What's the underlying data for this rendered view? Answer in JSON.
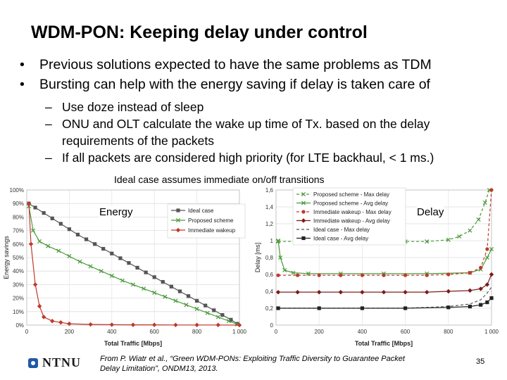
{
  "slide": {
    "title": "WDM-PON: Keeping delay under control",
    "bullets": [
      "Previous solutions expected to have the same problems as TDM",
      "Bursting can help with the energy saving if delay is taken care of"
    ],
    "sub_bullets": [
      "Use doze instead of sleep",
      "ONU and OLT calculate the wake up time of Tx. based on the delay requirements of the packets",
      "If all packets are considered high priority (for LTE backhaul, < 1 ms.)"
    ],
    "bullet_marker": "•",
    "sub_marker": "–",
    "caption": "Ideal case assumes immediate on/off transitions",
    "reference": "From P. Wiatr et al., “Green WDM-PONs: Exploiting Traffic Diversity to Guarantee Packet Delay Limitation”, ONDM13, 2013.",
    "page_number": "35",
    "logo_text": "NTNU"
  },
  "chart_data": [
    {
      "type": "line",
      "tag": "Energy",
      "xlabel": "Total Traffic [Mbps]",
      "ylabel": "Energy savings",
      "xlim": [
        0,
        1000
      ],
      "ylim": [
        0,
        1
      ],
      "x_ticks": [
        "0",
        "200",
        "400",
        "600",
        "800",
        "1 000"
      ],
      "y_ticks": [
        "0%",
        "10%",
        "20%",
        "30%",
        "40%",
        "50%",
        "60%",
        "70%",
        "80%",
        "90%",
        "100%"
      ],
      "legend_position": "top-right",
      "series": [
        {
          "name": "Ideal case",
          "color": "#555555",
          "marker": "square",
          "x": [
            10,
            40,
            80,
            120,
            160,
            200,
            240,
            280,
            320,
            360,
            400,
            440,
            480,
            520,
            560,
            600,
            640,
            680,
            720,
            760,
            800,
            840,
            880,
            920,
            960,
            990
          ],
          "y": [
            0.9,
            0.87,
            0.83,
            0.79,
            0.75,
            0.71,
            0.67,
            0.635,
            0.6,
            0.565,
            0.53,
            0.495,
            0.46,
            0.425,
            0.39,
            0.355,
            0.32,
            0.285,
            0.25,
            0.215,
            0.18,
            0.145,
            0.11,
            0.075,
            0.04,
            0.01
          ]
        },
        {
          "name": "Proposed scheme",
          "color": "#4a9a3a",
          "marker": "cross",
          "x": [
            10,
            30,
            60,
            100,
            150,
            200,
            250,
            300,
            350,
            400,
            450,
            500,
            550,
            600,
            650,
            700,
            750,
            800,
            850,
            900,
            950,
            990
          ],
          "y": [
            0.88,
            0.7,
            0.62,
            0.585,
            0.55,
            0.51,
            0.47,
            0.435,
            0.4,
            0.365,
            0.33,
            0.3,
            0.27,
            0.24,
            0.21,
            0.18,
            0.15,
            0.12,
            0.09,
            0.06,
            0.03,
            0.005
          ]
        },
        {
          "name": "Immediate wakeup",
          "color": "#c0392b",
          "marker": "diamond",
          "x": [
            10,
            20,
            40,
            60,
            80,
            120,
            160,
            200,
            300,
            400,
            500,
            600,
            700,
            800,
            900,
            1000
          ],
          "y": [
            0.9,
            0.6,
            0.3,
            0.14,
            0.06,
            0.03,
            0.02,
            0.01,
            0.005,
            0.003,
            0.002,
            0.002,
            0.001,
            0.001,
            0.001,
            0.0
          ]
        }
      ]
    },
    {
      "type": "line",
      "tag": "Delay",
      "xlabel": "Total Traffic [Mbps]",
      "ylabel": "Delay [ms]",
      "xlim": [
        0,
        1000
      ],
      "ylim": [
        0,
        1.6
      ],
      "x_ticks": [
        "0",
        "200",
        "400",
        "600",
        "800",
        "1 000"
      ],
      "y_ticks": [
        "0",
        "0,2",
        "0,4",
        "0,6",
        "0,8",
        "1",
        "1,2",
        "1,4",
        "1,6"
      ],
      "legend_position": "top",
      "series": [
        {
          "name": "Proposed scheme - Max delay",
          "color": "#4a9a3a",
          "dash": "4,3",
          "marker": "cross",
          "x": [
            10,
            100,
            200,
            300,
            400,
            500,
            600,
            700,
            800,
            850,
            900,
            940,
            970,
            990
          ],
          "y": [
            0.99,
            0.99,
            0.99,
            0.99,
            0.99,
            0.99,
            0.99,
            0.99,
            1.01,
            1.05,
            1.12,
            1.25,
            1.45,
            1.6
          ]
        },
        {
          "name": "Proposed scheme - Avg delay",
          "color": "#4a9a3a",
          "dash": "",
          "marker": "cross",
          "x": [
            10,
            20,
            40,
            80,
            150,
            300,
            500,
            700,
            900,
            950,
            980,
            1000
          ],
          "y": [
            1.0,
            0.8,
            0.65,
            0.62,
            0.61,
            0.61,
            0.61,
            0.61,
            0.62,
            0.66,
            0.8,
            0.9
          ]
        },
        {
          "name": "Immediate wakeup - Max delay",
          "color": "#c0392b",
          "dash": "4,3",
          "marker": "circle",
          "x": [
            10,
            100,
            200,
            300,
            400,
            500,
            600,
            700,
            800,
            900,
            950,
            980,
            1000
          ],
          "y": [
            0.59,
            0.59,
            0.59,
            0.59,
            0.59,
            0.59,
            0.59,
            0.59,
            0.6,
            0.62,
            0.68,
            0.9,
            1.6
          ]
        },
        {
          "name": "Immediate wakeup - Avg delay",
          "color": "#7b1a1a",
          "dash": "",
          "marker": "diamond",
          "x": [
            10,
            100,
            200,
            300,
            400,
            500,
            600,
            700,
            800,
            900,
            950,
            980,
            1000
          ],
          "y": [
            0.39,
            0.39,
            0.39,
            0.39,
            0.39,
            0.39,
            0.39,
            0.39,
            0.4,
            0.41,
            0.43,
            0.48,
            0.6
          ]
        },
        {
          "name": "Ideal case - Max delay",
          "color": "#555555",
          "dash": "4,3",
          "marker": "",
          "x": [
            10,
            200,
            400,
            600,
            800,
            900,
            950,
            980,
            1000
          ],
          "y": [
            0.2,
            0.2,
            0.2,
            0.2,
            0.22,
            0.25,
            0.3,
            0.38,
            0.45
          ]
        },
        {
          "name": "Ideal case - Avg delay",
          "color": "#222222",
          "dash": "",
          "marker": "square",
          "x": [
            10,
            200,
            400,
            600,
            800,
            900,
            950,
            980,
            1000
          ],
          "y": [
            0.2,
            0.2,
            0.2,
            0.2,
            0.21,
            0.22,
            0.24,
            0.27,
            0.32
          ]
        }
      ]
    }
  ]
}
